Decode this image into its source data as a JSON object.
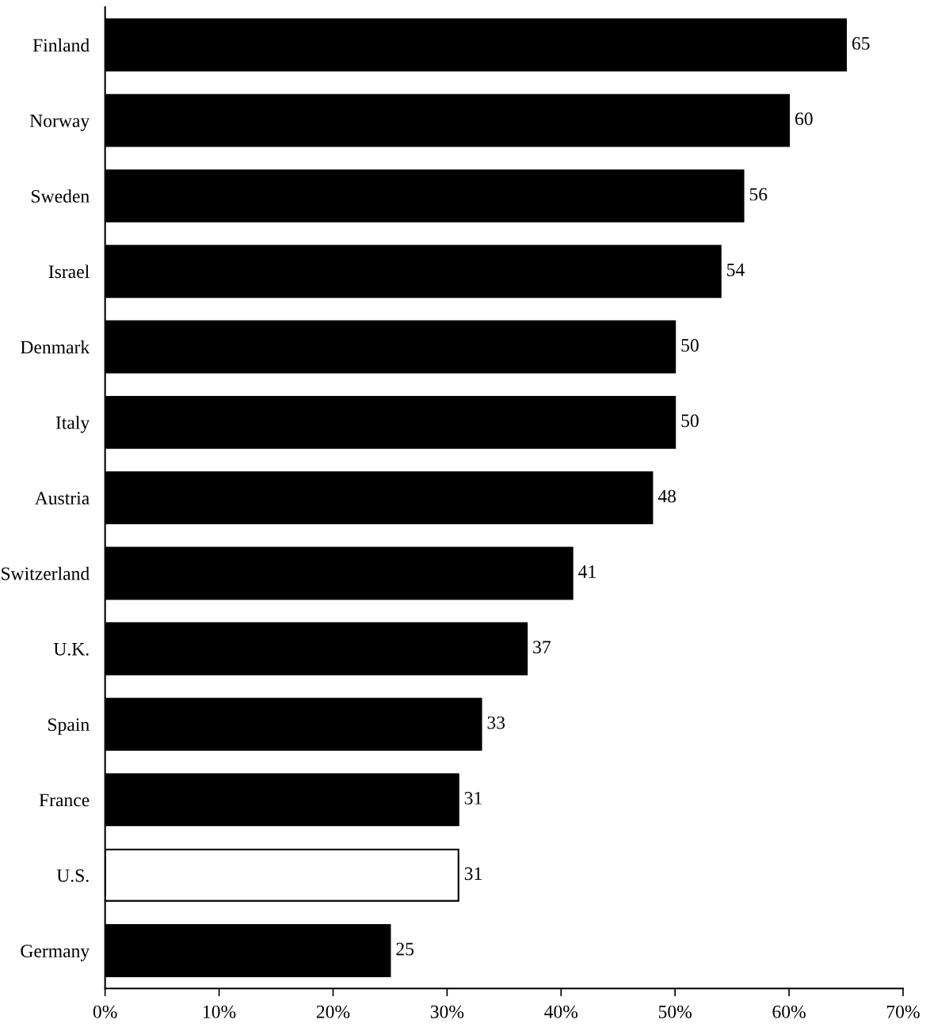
{
  "chart_data": {
    "type": "bar",
    "orientation": "horizontal",
    "categories": [
      "Finland",
      "Norway",
      "Sweden",
      "Israel",
      "Denmark",
      "Italy",
      "Austria",
      "Switzerland",
      "U.K.",
      "Spain",
      "France",
      "U.S.",
      "Germany"
    ],
    "values": [
      65,
      60,
      56,
      54,
      50,
      50,
      48,
      41,
      37,
      33,
      31,
      31,
      25
    ],
    "colors": [
      "#000000",
      "#000000",
      "#000000",
      "#000000",
      "#000000",
      "#000000",
      "#000000",
      "#000000",
      "#000000",
      "#000000",
      "#000000",
      "#ffffff",
      "#000000"
    ],
    "xlim": [
      0,
      70
    ],
    "xticks": [
      {
        "value": 0,
        "label": "0%"
      },
      {
        "value": 10,
        "label": "10%"
      },
      {
        "value": 20,
        "label": "20%"
      },
      {
        "value": 30,
        "label": "30%"
      },
      {
        "value": 40,
        "label": "40%"
      },
      {
        "value": 50,
        "label": "50%"
      },
      {
        "value": 60,
        "label": "60%"
      },
      {
        "value": 70,
        "label": "70%"
      }
    ],
    "data_labels": true,
    "grid": false,
    "legend": false
  }
}
